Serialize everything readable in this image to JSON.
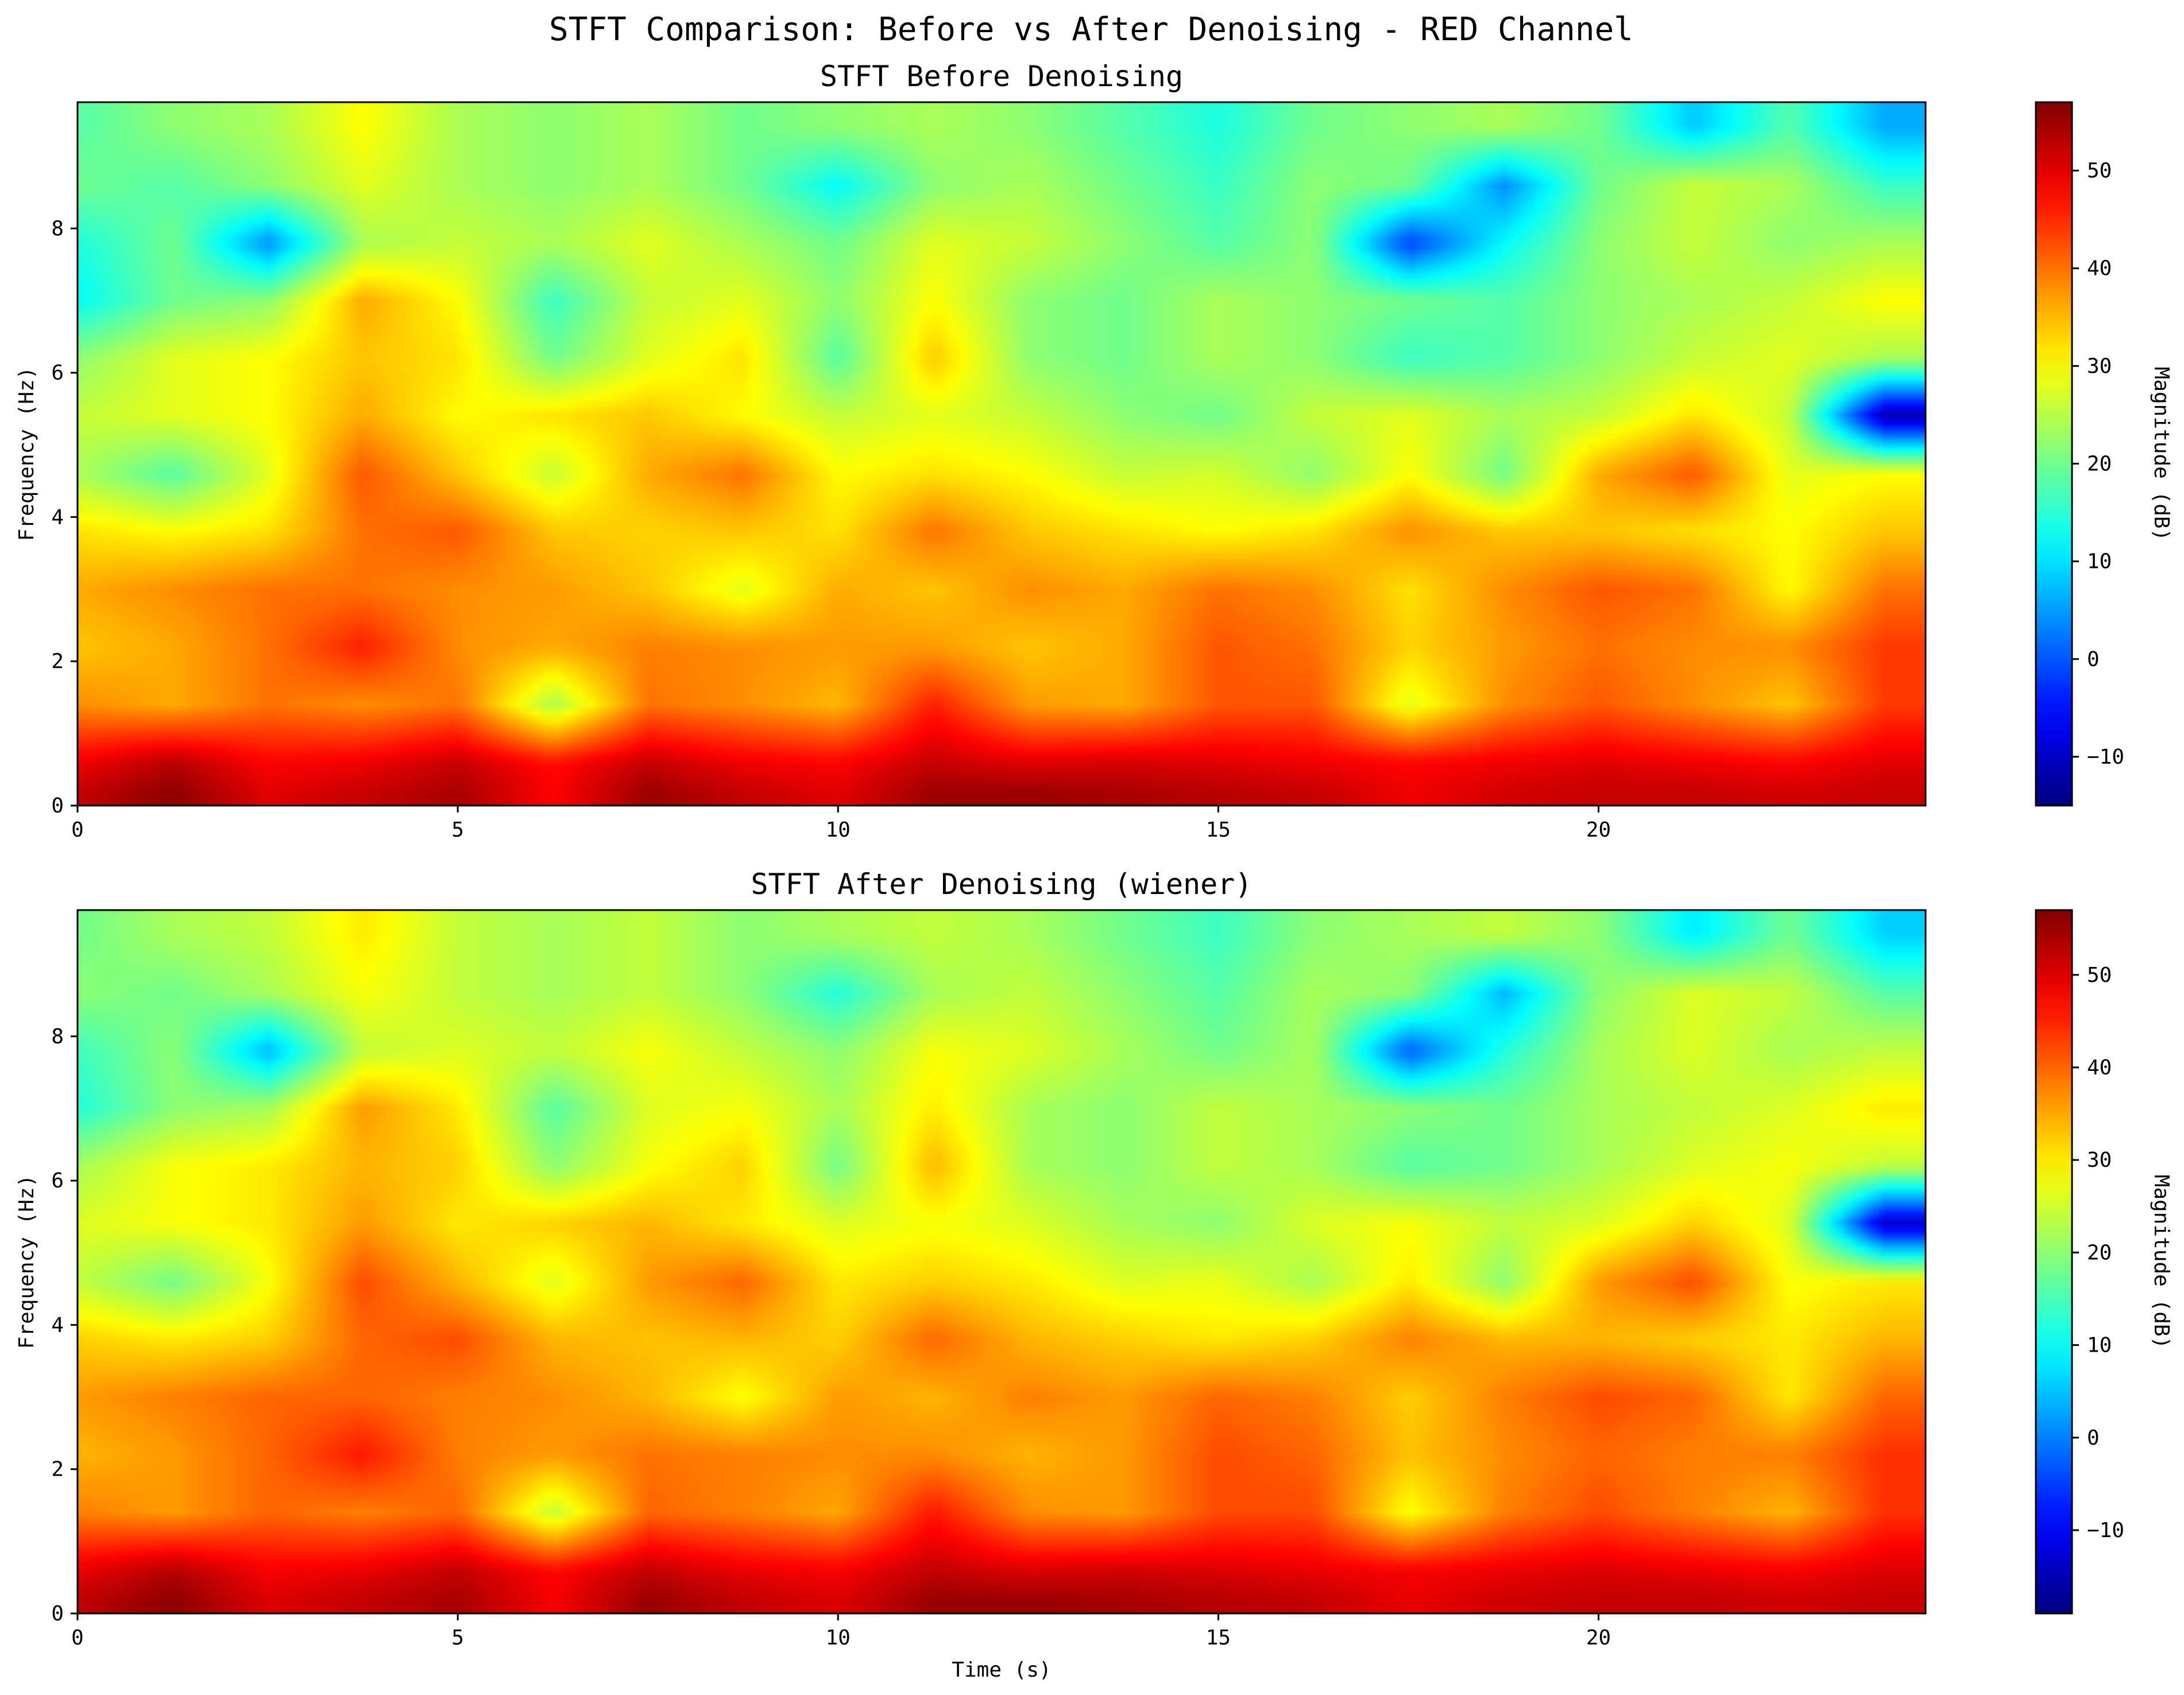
{
  "suptitle": "STFT Comparison: Before vs After Denoising - RED Channel",
  "chart_data": [
    {
      "type": "heatmap",
      "title": "STFT Before Denoising",
      "xlabel": "",
      "ylabel": "Frequency (Hz)",
      "colorbar_label": "Magnitude (dB)",
      "colormap": "jet",
      "xlim": [
        0,
        24.3
      ],
      "ylim": [
        0,
        9.75
      ],
      "xticks": [
        0,
        5,
        10,
        15,
        20
      ],
      "yticks": [
        0,
        2,
        4,
        6,
        8
      ],
      "clim": [
        -15,
        57
      ],
      "cbar_ticks": [
        -10,
        0,
        10,
        20,
        30,
        40,
        50
      ],
      "time_s": [
        0,
        1.25,
        2.5,
        3.75,
        5,
        6.25,
        7.5,
        8.75,
        10,
        11.25,
        12.5,
        13.75,
        15,
        16.25,
        17.5,
        18.75,
        20,
        21.25,
        22.5,
        23.75
      ],
      "freq_hz": [
        0.2,
        0.6,
        1.4,
        2.2,
        3.0,
        3.8,
        4.6,
        5.4,
        6.2,
        7.0,
        7.8,
        8.6,
        9.4
      ],
      "magnitude_db": [
        [
          52,
          56,
          50,
          52,
          54,
          48,
          55,
          52,
          50,
          55,
          55,
          54,
          53,
          52,
          49,
          51,
          52,
          52,
          51,
          52
        ],
        [
          49,
          53,
          48,
          49,
          52,
          47,
          52,
          49,
          48,
          52,
          50,
          51,
          50,
          49,
          48,
          49,
          50,
          49,
          48,
          50
        ],
        [
          38,
          36,
          40,
          38,
          40,
          24,
          40,
          38,
          35,
          46,
          37,
          36,
          42,
          42,
          28,
          38,
          42,
          38,
          34,
          44
        ],
        [
          34,
          36,
          40,
          46,
          38,
          36,
          39,
          38,
          37,
          37,
          34,
          36,
          42,
          40,
          33,
          37,
          40,
          38,
          38,
          44
        ],
        [
          36,
          38,
          40,
          40,
          38,
          37,
          34,
          28,
          36,
          34,
          38,
          36,
          40,
          38,
          32,
          38,
          42,
          40,
          30,
          40
        ],
        [
          32,
          30,
          32,
          40,
          42,
          34,
          33,
          34,
          32,
          40,
          34,
          32,
          30,
          32,
          38,
          34,
          34,
          32,
          30,
          34
        ],
        [
          24,
          18,
          28,
          42,
          34,
          26,
          36,
          40,
          30,
          32,
          30,
          26,
          27,
          22,
          30,
          20,
          36,
          42,
          28,
          30
        ],
        [
          26,
          28,
          30,
          36,
          30,
          32,
          34,
          30,
          26,
          28,
          26,
          22,
          20,
          26,
          28,
          24,
          26,
          32,
          26,
          -12
        ],
        [
          22,
          28,
          30,
          34,
          32,
          20,
          28,
          32,
          18,
          34,
          22,
          20,
          24,
          22,
          16,
          18,
          22,
          26,
          28,
          24
        ],
        [
          12,
          20,
          22,
          36,
          30,
          16,
          26,
          28,
          22,
          30,
          22,
          20,
          24,
          22,
          20,
          18,
          22,
          24,
          26,
          30
        ],
        [
          14,
          20,
          4,
          24,
          26,
          24,
          28,
          24,
          20,
          28,
          26,
          22,
          18,
          22,
          -2,
          12,
          22,
          26,
          22,
          24
        ],
        [
          20,
          18,
          22,
          28,
          24,
          22,
          24,
          20,
          12,
          22,
          24,
          20,
          16,
          22,
          20,
          4,
          20,
          26,
          24,
          16
        ],
        [
          18,
          22,
          24,
          30,
          24,
          22,
          24,
          20,
          22,
          24,
          22,
          18,
          14,
          20,
          22,
          24,
          20,
          8,
          18,
          6
        ]
      ]
    },
    {
      "type": "heatmap",
      "title": "STFT After Denoising (wiener)",
      "xlabel": "Time (s)",
      "ylabel": "Frequency (Hz)",
      "colorbar_label": "Magnitude (dB)",
      "colormap": "jet",
      "xlim": [
        0,
        24.3
      ],
      "ylim": [
        0,
        9.75
      ],
      "xticks": [
        0,
        5,
        10,
        15,
        20
      ],
      "yticks": [
        0,
        2,
        4,
        6,
        8
      ],
      "clim": [
        -19,
        57
      ],
      "cbar_ticks": [
        -10,
        0,
        10,
        20,
        30,
        40,
        50
      ],
      "time_s": [
        0,
        1.25,
        2.5,
        3.75,
        5,
        6.25,
        7.5,
        8.75,
        10,
        11.25,
        12.5,
        13.75,
        15,
        16.25,
        17.5,
        18.75,
        20,
        21.25,
        22.5,
        23.75
      ],
      "freq_hz": [
        0.2,
        0.6,
        1.4,
        2.2,
        3.0,
        3.8,
        4.6,
        5.4,
        6.2,
        7.0,
        7.8,
        8.6,
        9.4
      ],
      "magnitude_db": [
        [
          52,
          56,
          50,
          52,
          54,
          48,
          55,
          52,
          50,
          55,
          55,
          54,
          53,
          52,
          49,
          51,
          52,
          52,
          51,
          52
        ],
        [
          49,
          53,
          48,
          49,
          52,
          47,
          52,
          49,
          48,
          52,
          50,
          51,
          50,
          49,
          48,
          49,
          50,
          49,
          48,
          50
        ],
        [
          38,
          36,
          40,
          38,
          40,
          24,
          40,
          38,
          35,
          46,
          37,
          36,
          42,
          42,
          28,
          38,
          42,
          38,
          34,
          44
        ],
        [
          34,
          36,
          40,
          46,
          38,
          36,
          39,
          38,
          37,
          37,
          34,
          36,
          42,
          40,
          33,
          37,
          40,
          38,
          38,
          44
        ],
        [
          36,
          38,
          40,
          40,
          38,
          37,
          34,
          28,
          36,
          34,
          38,
          36,
          40,
          38,
          32,
          38,
          42,
          40,
          30,
          40
        ],
        [
          32,
          30,
          32,
          40,
          42,
          34,
          33,
          34,
          32,
          40,
          34,
          32,
          30,
          32,
          38,
          34,
          34,
          32,
          30,
          34
        ],
        [
          24,
          18,
          28,
          42,
          34,
          26,
          36,
          40,
          30,
          32,
          30,
          26,
          27,
          22,
          30,
          20,
          36,
          42,
          28,
          30
        ],
        [
          26,
          28,
          30,
          36,
          30,
          32,
          34,
          30,
          26,
          28,
          26,
          22,
          20,
          26,
          28,
          24,
          26,
          32,
          26,
          -14
        ],
        [
          22,
          28,
          30,
          34,
          32,
          20,
          28,
          32,
          18,
          34,
          22,
          20,
          24,
          22,
          16,
          18,
          22,
          26,
          28,
          24
        ],
        [
          12,
          20,
          22,
          36,
          30,
          16,
          26,
          28,
          22,
          30,
          22,
          20,
          24,
          22,
          20,
          18,
          22,
          24,
          26,
          30
        ],
        [
          14,
          20,
          4,
          24,
          26,
          24,
          28,
          24,
          20,
          28,
          26,
          22,
          18,
          22,
          -3,
          12,
          22,
          26,
          22,
          24
        ],
        [
          20,
          18,
          22,
          28,
          24,
          22,
          24,
          20,
          12,
          22,
          24,
          20,
          16,
          22,
          20,
          4,
          20,
          26,
          24,
          16
        ],
        [
          18,
          22,
          24,
          30,
          24,
          22,
          24,
          20,
          22,
          24,
          22,
          18,
          14,
          20,
          22,
          24,
          20,
          8,
          18,
          6
        ]
      ]
    }
  ]
}
